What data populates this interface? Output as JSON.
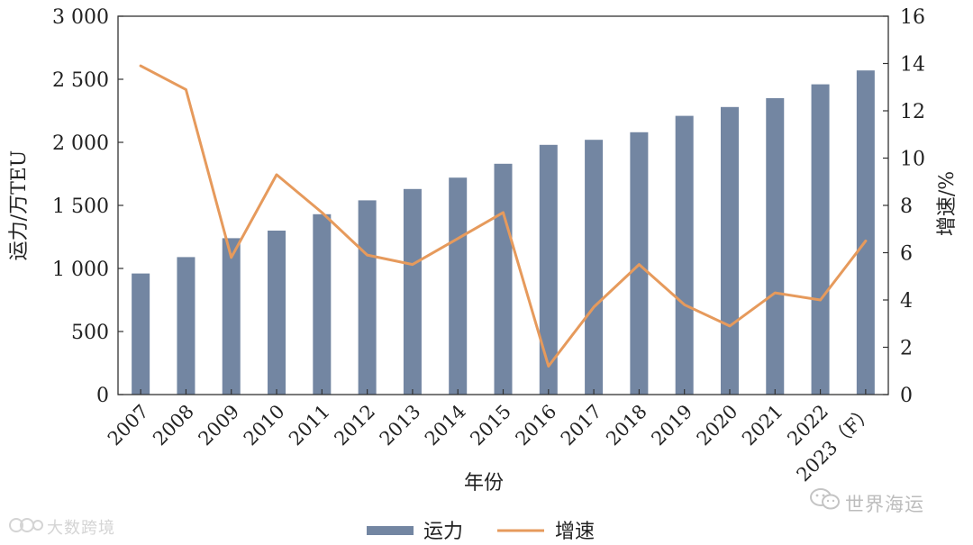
{
  "chart_data": {
    "type": "bar",
    "categories": [
      "2007",
      "2008",
      "2009",
      "2010",
      "2011",
      "2012",
      "2013",
      "2014",
      "2015",
      "2016",
      "2017",
      "2018",
      "2019",
      "2020",
      "2021",
      "2022",
      "2023（F）"
    ],
    "series": [
      {
        "name": "运力",
        "type": "bar",
        "axis": "left",
        "color": "#7386a2",
        "values": [
          960,
          1090,
          1240,
          1300,
          1430,
          1540,
          1630,
          1720,
          1830,
          1980,
          2020,
          2080,
          2210,
          2280,
          2350,
          2460,
          2570
        ]
      },
      {
        "name": "增速",
        "type": "line",
        "axis": "right",
        "color": "#e69a5c",
        "values": [
          13.9,
          12.9,
          5.8,
          9.3,
          7.7,
          5.9,
          5.5,
          6.6,
          7.7,
          1.2,
          3.7,
          5.5,
          3.8,
          2.9,
          4.3,
          4.0,
          6.5
        ]
      }
    ],
    "xlabel": "年份",
    "ylabel": "运力/万TEU",
    "y2label": "增速/%",
    "ylim": [
      0,
      3000
    ],
    "y2lim": [
      0,
      16
    ],
    "yticks": [
      "0",
      "500",
      "1 000",
      "1 500",
      "2 000",
      "2 500",
      "3 000"
    ],
    "y2ticks": [
      "0",
      "2",
      "4",
      "6",
      "8",
      "10",
      "12",
      "14",
      "16"
    ],
    "legend_position": "bottom-center",
    "grid": false
  },
  "watermarks": {
    "right": "世界海运",
    "left": "大数跨境"
  }
}
